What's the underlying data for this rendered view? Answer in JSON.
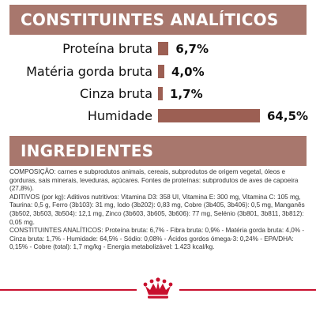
{
  "analytic": {
    "title": "CONSTITUINTES ANALÍTICOS",
    "rows": [
      {
        "label": "Proteína bruta",
        "value_text": "6,7%",
        "percent": 6.7
      },
      {
        "label": "Matéria gorda bruta",
        "value_text": "4,0%",
        "percent": 4.0
      },
      {
        "label": "Cinza bruta",
        "value_text": "1,7%",
        "percent": 1.7
      },
      {
        "label": "Humidade",
        "value_text": "64,5%",
        "percent": 64.5
      }
    ]
  },
  "ingredients": {
    "title": "INGREDIENTES",
    "paragraphs": [
      "COMPOSIÇÃO: carnes e subprodutos animais, cereais, subprodutos de origem vegetal, óleos e gorduras, sais minerais, leveduras, açúcares. Fontes de proteínas: subprodutos de aves de capoeira (27,8%).",
      "ADITIVOS (por kg): Aditivos nutritivos: Vitamina D3: 358 UI, Vitamina E: 300 mg, Vitamina C: 105 mg, Taurina: 0,5 g, Ferro (3b103): 31 mg, Iodo (3b202): 0,83 mg, Cobre (3b405, 3b406): 0,5 mg, Manganês (3b502, 3b503, 3b504): 12,1 mg, Zinco (3b603, 3b605, 3b606): 77 mg, Selénio (3b801, 3b811, 3b812): 0,05 mg.",
      "CONSTITUINTES ANALÍTICOS: Proteína bruta: 6,7% - Fibra bruta: 0,9% - Matéria gorda bruta: 4,0% - Cinza bruta: 1,7% - Humidade: 64,5% - Sódio: 0,08% - Ácidos gordos ómega-3: 0,24% - EPA/DHA: 0,15% - Cobre (total): 1,7 mg/kg - Energia metabolizável: 1.423 kcal/kg."
    ]
  },
  "colors": {
    "banner": "#a8776d",
    "bar": "#9c5f53",
    "footer_line": "#c8102e"
  },
  "footer": {
    "icon": "crown-logo-icon"
  }
}
